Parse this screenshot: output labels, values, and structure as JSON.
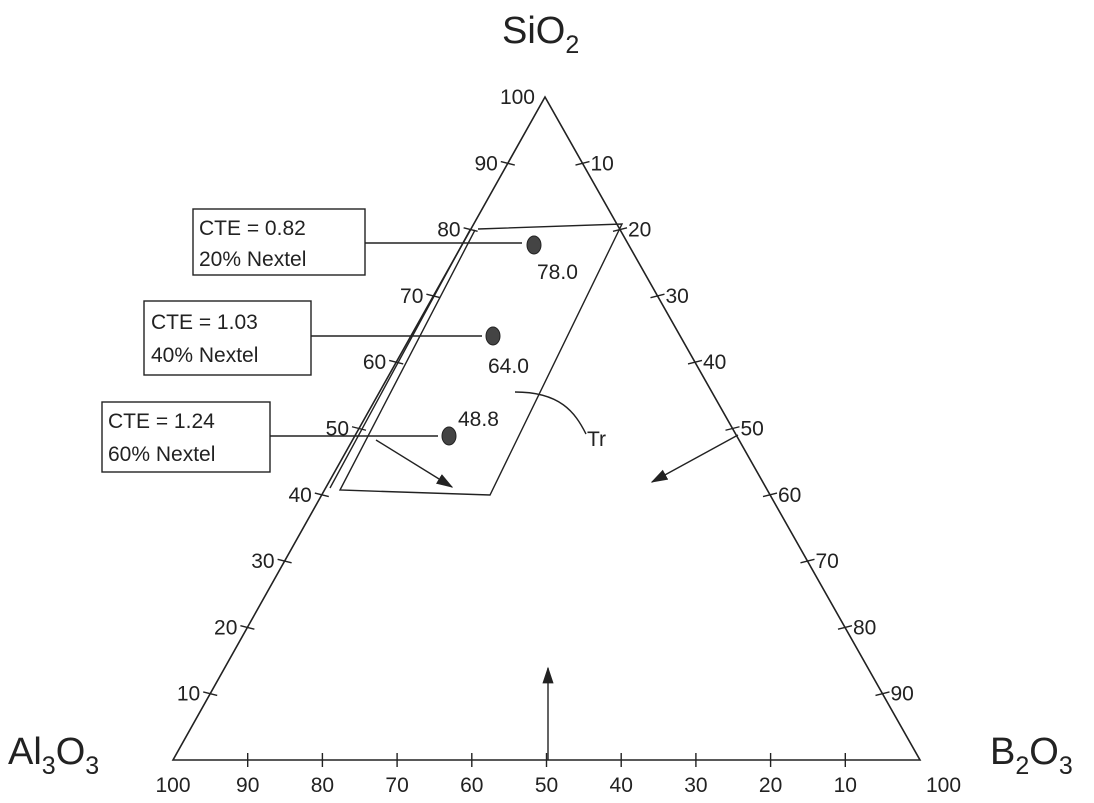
{
  "vertices": {
    "top": {
      "main": "SiO",
      "sub": "2"
    },
    "left": {
      "p1": "Al",
      "s1": "3",
      "p2": "O",
      "s2": "3"
    },
    "right": {
      "p1": "B",
      "s1": "2",
      "p2": "O",
      "s2": "3"
    }
  },
  "ticks": {
    "left_edge": [
      "10",
      "20",
      "30",
      "40",
      "50",
      "60",
      "70",
      "80",
      "90",
      "100"
    ],
    "right_edge": [
      "10",
      "20",
      "30",
      "40",
      "50",
      "60",
      "70",
      "80",
      "90",
      "100"
    ],
    "bottom_edge": [
      "100",
      "90",
      "80",
      "70",
      "60",
      "50",
      "40",
      "30",
      "20",
      "10"
    ]
  },
  "callouts": [
    {
      "cte": "CTE = 0.82",
      "nextel": "20% Nextel",
      "value": "78.0"
    },
    {
      "cte": "CTE = 1.03",
      "nextel": "40% Nextel",
      "value": "64.0"
    },
    {
      "cte": "CTE = 1.24",
      "nextel": "60% Nextel",
      "value": "48.8"
    }
  ],
  "region_label": "Tr",
  "colors": {
    "line": "#222222",
    "point": "#444444",
    "background": "#ffffff"
  }
}
